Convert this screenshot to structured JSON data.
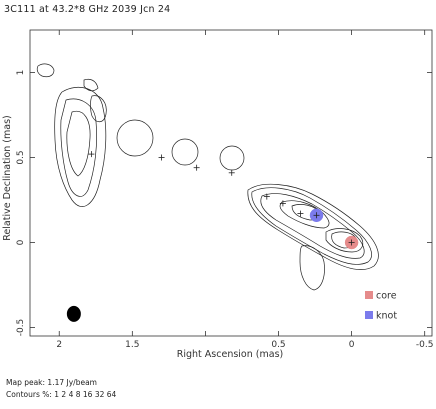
{
  "chart_data": {
    "type": "scatter",
    "title": "3C111 at 43.2*8 GHz 2039 Jcn 24",
    "xlabel": "Right Ascension  (mas)",
    "ylabel": "Relative Declination  (mas)",
    "xlim": [
      2.2,
      -0.55
    ],
    "ylim": [
      -0.55,
      1.25
    ],
    "x_axis_reversed": true,
    "xticks": [
      2,
      1.5,
      1,
      0.5,
      0,
      -0.5
    ],
    "xtick_labels": [
      "2",
      "1.5",
      "",
      "0.5",
      "0",
      "-0.5"
    ],
    "yticks": [
      -0.5,
      0,
      0.5,
      1
    ],
    "ytick_labels": [
      "-0.5",
      "0",
      "0.5",
      "1"
    ],
    "legend_position": "bottom-right",
    "series": [
      {
        "name": "core",
        "color": "#e58b8b",
        "x": [
          0.0
        ],
        "y": [
          0.0
        ]
      },
      {
        "name": "knot",
        "color": "#7b7bec",
        "x": [
          0.24
        ],
        "y": [
          0.16
        ]
      }
    ],
    "model_components": [
      {
        "x": 1.78,
        "y": 0.52
      },
      {
        "x": 1.3,
        "y": 0.5
      },
      {
        "x": 1.06,
        "y": 0.44
      },
      {
        "x": 0.82,
        "y": 0.41
      },
      {
        "x": 0.58,
        "y": 0.27
      },
      {
        "x": 0.47,
        "y": 0.23
      },
      {
        "x": 0.35,
        "y": 0.17
      },
      {
        "x": 0.24,
        "y": 0.16
      },
      {
        "x": 0.0,
        "y": 0.0
      }
    ],
    "beam": {
      "x": 1.9,
      "y": -0.42
    }
  },
  "footer": {
    "line1": "Map peak: 1.17 Jy/beam",
    "line2": "Contours %: 1 2 4 8 16 32 64"
  }
}
